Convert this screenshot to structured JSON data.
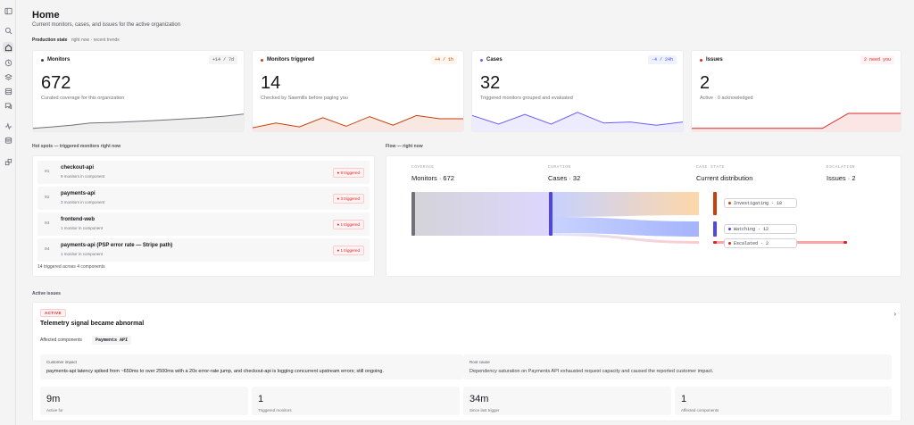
{
  "colors": {
    "neutral": "#71717a",
    "orange": "#c2410c",
    "purple": "#6d5ef5",
    "red": "#dc2626"
  },
  "sidebar": {
    "icons": [
      "panel-toggle-icon",
      "search-icon",
      "home-icon",
      "monitor-icon",
      "layers-icon",
      "database-icon",
      "chat-icon",
      "activity-icon",
      "storage-icon",
      "integrations-icon"
    ],
    "active": "home-icon"
  },
  "header": {
    "title": "Home",
    "subtitle": "Current monitors, cases, and issues for the active organization",
    "state_label": "Production state",
    "state_now": "right now",
    "state_trends": "recent trends"
  },
  "kpis": [
    {
      "title": "Monitors",
      "badge": "+14 / 7d",
      "value": "672",
      "desc": "Curated coverage for this organization",
      "color": "#71717a",
      "badge_bg": "#f4f4f5",
      "badge_fg": "#52525b",
      "trend": [
        0.05,
        0.12,
        0.2,
        0.3,
        0.32,
        0.36,
        0.4,
        0.45,
        0.5,
        0.55,
        0.62,
        0.72
      ]
    },
    {
      "title": "Monitors triggered",
      "badge": "+4 / 1h",
      "value": "14",
      "desc": "Checked by Sawmills before paging you",
      "color": "#c2410c",
      "badge_bg": "#fff7ed",
      "badge_fg": "#c2410c",
      "trend": [
        0.08,
        0.3,
        0.12,
        0.55,
        0.15,
        0.6,
        0.2,
        0.65,
        0.5,
        0.5
      ]
    },
    {
      "title": "Cases",
      "badge": "-4 / 24h",
      "value": "32",
      "desc": "Triggered monitors grouped and evaluated",
      "color": "#6d5ef5",
      "badge_bg": "#eef2ff",
      "badge_fg": "#4f46e5",
      "trend": [
        0.65,
        0.25,
        0.7,
        0.25,
        0.8,
        0.3,
        0.35,
        0.2,
        0.35
      ]
    },
    {
      "title": "Issues",
      "badge": "2 need you",
      "value": "2",
      "desc": "Active · 0 acknowledged",
      "color": "#dc2626",
      "badge_bg": "#fef2f2",
      "badge_fg": "#dc2626",
      "trend": [
        0.05,
        0.05,
        0.05,
        0.05,
        0.05,
        0.05,
        0.75,
        0.75,
        0.75
      ]
    }
  ],
  "hotspots": {
    "label": "Hot spots — triggered monitors right now",
    "rows": [
      {
        "rank": "01",
        "name": "checkout-api",
        "sub": "9 monitors in component",
        "badge": "9 triggered"
      },
      {
        "rank": "02",
        "name": "payments-api",
        "sub": "3 monitors in component",
        "badge": "3 triggered"
      },
      {
        "rank": "03",
        "name": "frontend-web",
        "sub": "1 monitor in component",
        "badge": "1 triggered"
      },
      {
        "rank": "04",
        "name": "payments-api (PSP error rate — Stripe path)",
        "sub": "1 monitor in component",
        "badge": "1 triggered"
      }
    ],
    "footer": "14 triggered across 4 components"
  },
  "flow": {
    "label": "Flow — right now",
    "columns": [
      {
        "cap": "COVERAGE",
        "head": "Monitors · 672"
      },
      {
        "cap": "CURATION",
        "head": "Cases · 32"
      },
      {
        "cap": "CASE STATE",
        "head": "Current distribution"
      },
      {
        "cap": "ESCALATION",
        "head": "Issues · 2"
      }
    ],
    "states": [
      {
        "label": "Investigating · 18",
        "value": 18,
        "color": "#c2410c"
      },
      {
        "label": "Watching · 12",
        "value": 12,
        "color": "#6d5ef5"
      },
      {
        "label": "Escalated · 2",
        "value": 2,
        "color": "#dc2626"
      }
    ]
  },
  "issues": {
    "label": "Active issues",
    "badge": "ACTIVE",
    "title": "Telemetry signal became abnormal",
    "affected_label": "Affected components",
    "affected_chip": "Payments API",
    "impact_cap": "Customer impact",
    "impact_text": "payments-api latency spiked from ~650ms to over 2500ms with a 20x error-rate jump, and checkout-api is logging concurrent upstream errors; still ongoing.",
    "root_cap": "Root cause",
    "root_text": "Dependency saturation on Payments API exhausted request capacity and caused the reported customer impact.",
    "stats": [
      {
        "value": "9m",
        "caption": "Active for"
      },
      {
        "value": "1",
        "caption": "Triggered monitors"
      },
      {
        "value": "34m",
        "caption": "Since last trigger"
      },
      {
        "value": "1",
        "caption": "Affected components"
      }
    ]
  }
}
